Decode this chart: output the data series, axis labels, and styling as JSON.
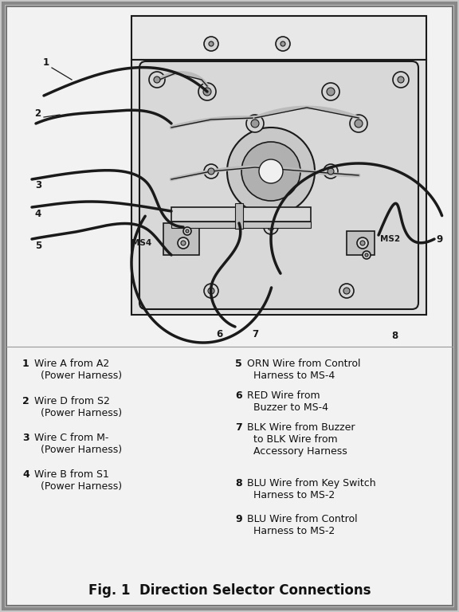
{
  "bg_color": "#c8c8c8",
  "paper_color": "#f2f2f2",
  "title": "Fig. 1  Direction Selector Connections",
  "title_fontsize": 12,
  "legend_left": [
    [
      "1",
      "Wire A from A2",
      "(Power Harness)"
    ],
    [
      "2",
      "Wire D from S2",
      "(Power Harness)"
    ],
    [
      "3",
      "Wire C from M-",
      "(Power Harness)"
    ],
    [
      "4",
      "Wire B from S1",
      "(Power Harness)"
    ]
  ],
  "legend_right": [
    [
      "5",
      "ORN Wire from Control",
      "Harness to MS-4"
    ],
    [
      "6",
      "RED Wire from",
      "Buzzer to MS-4"
    ],
    [
      "7",
      "BLK Wire from Buzzer",
      "to BLK Wire from",
      "Accessory Harness"
    ],
    [
      "8",
      "BLU Wire from Key Switch",
      "Harness to MS-2"
    ],
    [
      "9",
      "BLU Wire from Control",
      "Harness to MS-2"
    ]
  ],
  "text_color": "#111111",
  "line_color": "#1a1a1a",
  "legend_fontsize": 9,
  "num_fontsize": 9
}
